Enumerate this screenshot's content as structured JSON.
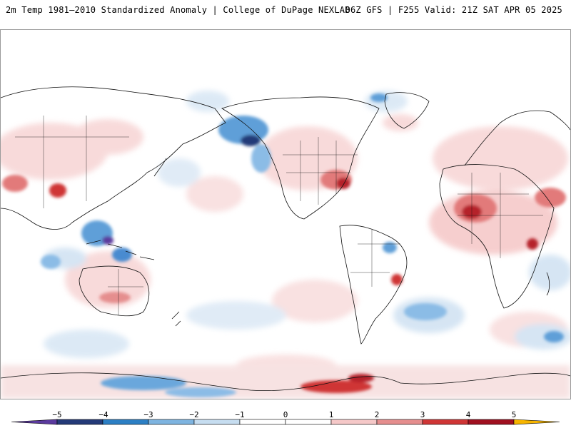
{
  "header": {
    "title_left": "2m Temp 1981–2010 Standardized Anomaly | College of DuPage NEXLAB",
    "title_right": "06Z GFS | F255 Valid: 21Z SAT APR 05 2025"
  },
  "map": {
    "projection": "global cylindrical, Pacific-centered",
    "highlights": [
      {
        "region": "Gulf of Alaska / Alaska coast",
        "sign": "negative"
      },
      {
        "region": "Philippines / Maritime Continent",
        "sign": "negative"
      },
      {
        "region": "Eastern United States",
        "sign": "positive"
      },
      {
        "region": "North Africa / Sahel",
        "sign": "positive"
      },
      {
        "region": "Tibetan Plateau",
        "sign": "positive"
      },
      {
        "region": "Antarctic Peninsula",
        "sign": "positive"
      },
      {
        "region": "Antarctic coast south of Pacific",
        "sign": "negative"
      }
    ]
  },
  "colorbar": {
    "ticks": [
      "−5",
      "−4",
      "−3",
      "−2",
      "−1",
      "0",
      "1",
      "2",
      "3",
      "4",
      "5"
    ],
    "colors": [
      "#5b3a9e",
      "#243a78",
      "#2c7fc4",
      "#7eb4e0",
      "#c6ddf0",
      "#ffffff",
      "#ffffff",
      "#f5c8c8",
      "#e58e8e",
      "#cf3535",
      "#a01020",
      "#f7b500"
    ]
  }
}
